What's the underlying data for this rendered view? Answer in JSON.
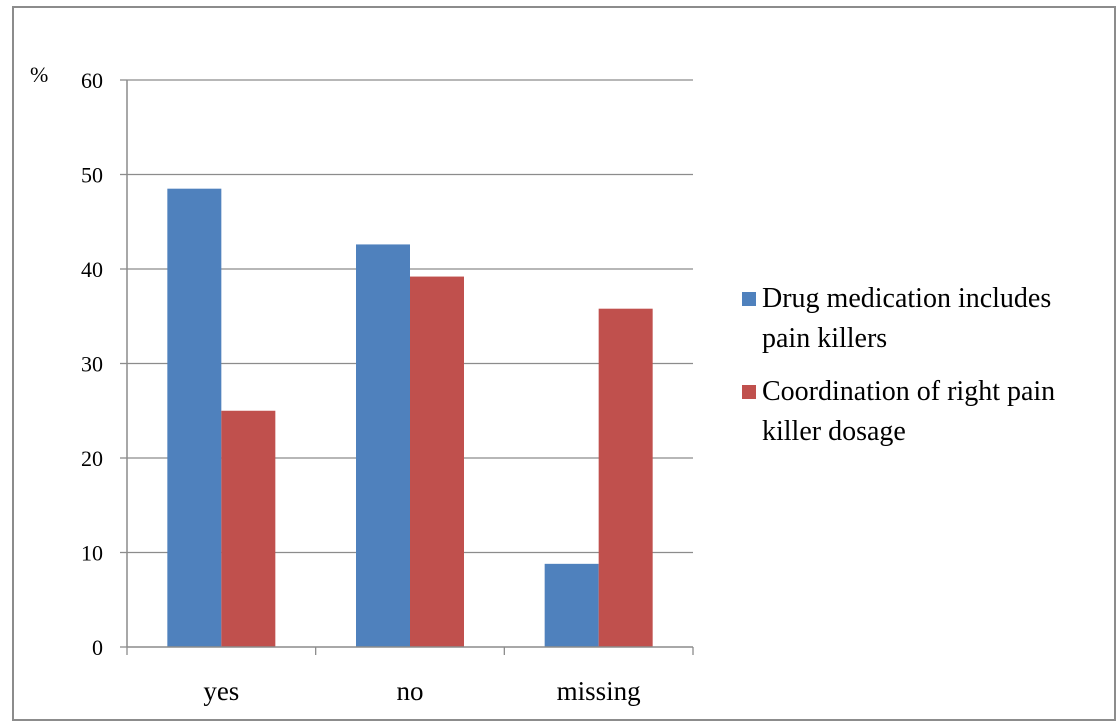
{
  "chart_data": {
    "type": "bar",
    "categories": [
      "yes",
      "no",
      "missing"
    ],
    "series": [
      {
        "name": "Drug medication includes pain killers",
        "values": [
          48.5,
          42.6,
          8.8
        ],
        "color": "#4f81bd"
      },
      {
        "name": "Coordination of right pain killer dosage",
        "values": [
          25.0,
          39.2,
          35.8
        ],
        "color": "#c0504d"
      }
    ],
    "ylabel": "%",
    "ylim": [
      0,
      60
    ],
    "yticks": [
      0,
      10,
      20,
      30,
      40,
      50,
      60
    ],
    "grid": true,
    "legend_position": "right"
  },
  "legend": {
    "items": [
      {
        "lines": [
          "Drug medication includes",
          "pain killers"
        ]
      },
      {
        "lines": [
          "Coordination of right pain",
          "killer dosage"
        ]
      }
    ]
  }
}
